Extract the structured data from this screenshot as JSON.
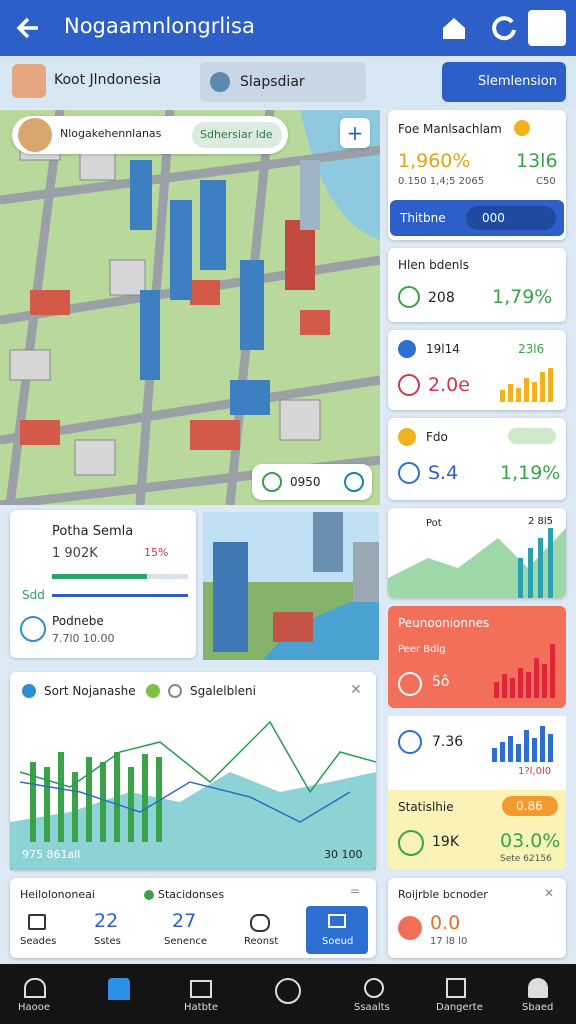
{
  "header": {
    "title": "Nogaamnlongrlisa"
  },
  "toolbar": {
    "location": "Koot Jlndonesia",
    "tab": "Slapsdiar",
    "button": "Slemlension"
  },
  "map": {
    "card_title": "Nlogakehennlanas",
    "card_pill": "Sdhersiar lde",
    "badge": "0950"
  },
  "stats": [
    {
      "title": "Foe Manlsachlam",
      "value": "1,960%",
      "value2": "13l6",
      "caption": "0.150 1,4;5 2065",
      "caption2": "C50",
      "bar_label": "Thitbne",
      "bar_value": "000"
    },
    {
      "title": "Hlen bdenls",
      "value": "208",
      "value2": "1,79%"
    },
    {
      "label": "19l14",
      "value": "2.0e",
      "value2": "23l6"
    },
    {
      "title": "Fdo",
      "value": "S.4",
      "value2": "1,19%"
    },
    {
      "title": "Pot",
      "value2": "2 8l5"
    },
    {
      "title": "Peunoonionnes",
      "label": "Peer Bdlg",
      "value": "5ô"
    },
    {
      "value": "7.36",
      "value2": "1?l,0l0"
    },
    {
      "title": "Statislhie",
      "pill": "0.86",
      "value": "19K",
      "value2": "03.0%",
      "caption": "Sete 62156"
    },
    {
      "title": "Roijrble bcnoder",
      "value": "0.0",
      "caption": "17 l8 l0"
    }
  ],
  "project": {
    "title": "Potha Semla",
    "value": "1 902K",
    "percent": "15%",
    "label": "Sdd",
    "title2": "Podnebe",
    "value2": "7.7l0 10.00"
  },
  "chart_card": {
    "legend1": "Sort Nojanashe",
    "legend2": "Sgalelbleni",
    "left_label": "975 861all",
    "right_label": "30 100"
  },
  "summary": {
    "title": "Heilolononeai",
    "subtitle": "Stacidonses",
    "items": [
      {
        "label": "Seades"
      },
      {
        "value": "22",
        "label": "Sstes"
      },
      {
        "value": "27",
        "label": "Senence"
      },
      {
        "label": "Reonst"
      },
      {
        "label": "Soeud"
      }
    ]
  },
  "nav": [
    "Haooe",
    "Hatbte",
    "Ssaalts",
    "Dangerte",
    "Sbaed"
  ]
}
